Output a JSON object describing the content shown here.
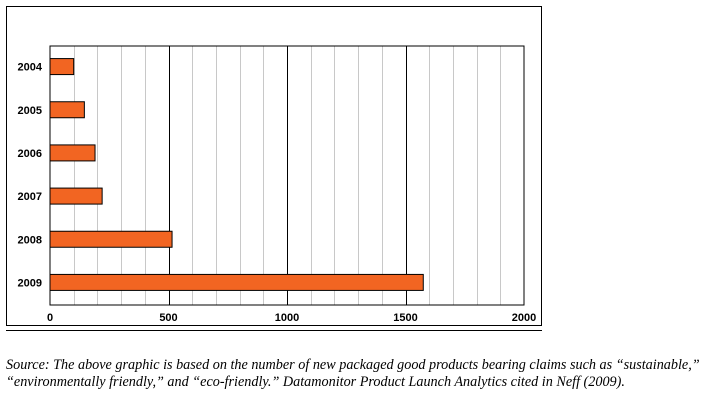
{
  "chart_data": {
    "type": "bar",
    "orientation": "horizontal",
    "title": "",
    "xlabel": "",
    "ylabel": "",
    "categories": [
      "2004",
      "2005",
      "2006",
      "2007",
      "2008",
      "2009"
    ],
    "values": [
      100,
      145,
      190,
      220,
      515,
      1575
    ],
    "xlim": [
      0,
      2000
    ],
    "major_ticks": [
      0,
      500,
      1000,
      1500,
      2000
    ],
    "minor_tick_step": 100,
    "grid": true,
    "legend": "none"
  },
  "colors": {
    "bar_fill": "#f26522",
    "bar_stroke": "#000000",
    "minor_grid": "#c8c8c8",
    "major_grid": "#000000"
  },
  "caption": "Source: The above graphic is based on the number of new packaged good products bearing claims such as “sustainable,” “environmentally friendly,” and “eco-friendly.” Datamonitor Product Launch Analytics cited in Neff (2009)."
}
